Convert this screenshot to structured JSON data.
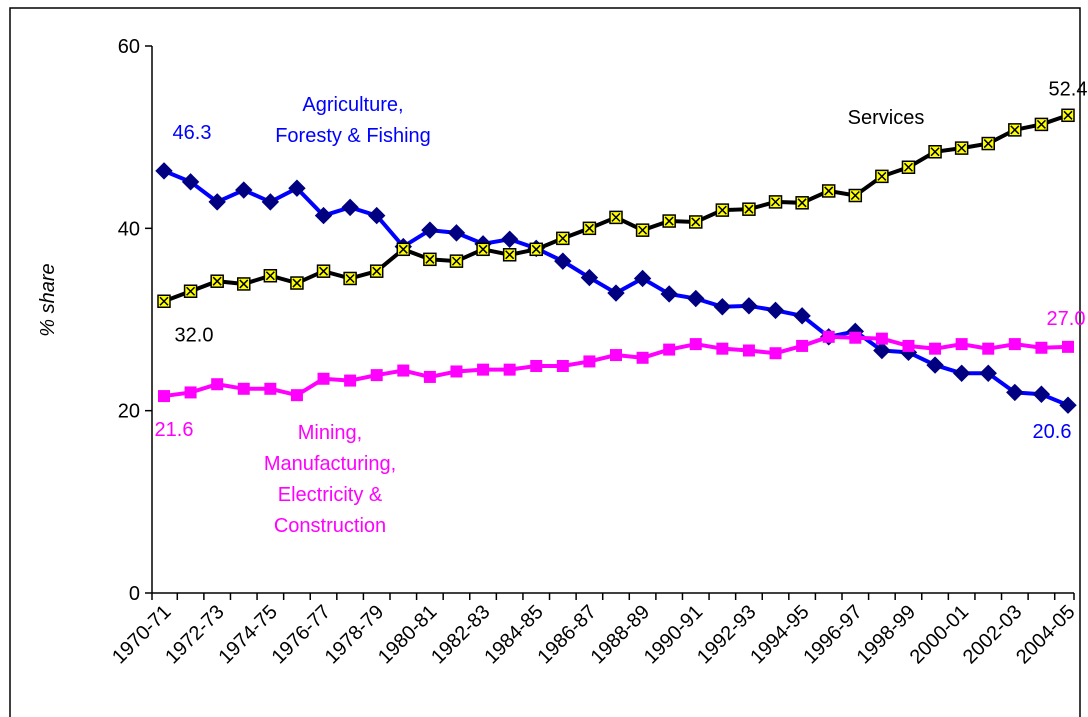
{
  "chart_data": {
    "type": "line",
    "y_label": "% share",
    "categories": [
      "1970-71",
      null,
      "1972-73",
      null,
      "1974-75",
      null,
      "1976-77",
      null,
      "1978-79",
      null,
      "1980-81",
      null,
      "1982-83",
      null,
      "1984-85",
      null,
      "1986-87",
      null,
      "1988-89",
      null,
      "1990-91",
      null,
      "1992-93",
      null,
      "1994-95",
      null,
      "1996-97",
      null,
      "1998-99",
      null,
      "2000-01",
      null,
      "2002-03",
      null,
      "2004-05"
    ],
    "ylim": [
      0,
      60
    ],
    "yticks": [
      0,
      20,
      40,
      60
    ],
    "series": [
      {
        "name": "Agriculture,\nForesty & Fishing",
        "color": "#0000ff",
        "marker": "diamond",
        "marker_color": "#000080",
        "values": [
          46.3,
          45.1,
          42.9,
          44.2,
          42.9,
          44.4,
          41.4,
          42.3,
          41.4,
          38.0,
          39.8,
          39.5,
          38.3,
          38.8,
          37.8,
          36.4,
          34.6,
          32.9,
          34.5,
          32.8,
          32.3,
          31.4,
          31.5,
          31.0,
          30.4,
          28.1,
          28.7,
          26.6,
          26.4,
          25.0,
          24.1,
          24.1,
          22.0,
          21.8,
          20.6
        ],
        "value_labels": [
          "46.3",
          null,
          null,
          null,
          null,
          null,
          null,
          null,
          null,
          null,
          null,
          null,
          null,
          null,
          null,
          null,
          null,
          null,
          null,
          null,
          null,
          null,
          null,
          null,
          null,
          null,
          null,
          null,
          null,
          null,
          null,
          null,
          null,
          null,
          "20.6"
        ]
      },
      {
        "name": "Services",
        "color": "#000000",
        "marker": "xsquare",
        "marker_color": "#ffff00",
        "values": [
          32.0,
          33.1,
          34.2,
          33.9,
          34.8,
          34.0,
          35.3,
          34.5,
          35.3,
          37.7,
          36.6,
          36.4,
          37.7,
          37.1,
          37.7,
          38.9,
          40.0,
          41.2,
          39.8,
          40.8,
          40.7,
          42.0,
          42.1,
          42.9,
          42.8,
          44.1,
          43.6,
          45.7,
          46.7,
          48.4,
          48.8,
          49.3,
          50.8,
          51.4,
          52.4
        ],
        "value_labels": [
          "32.0",
          null,
          null,
          null,
          null,
          null,
          null,
          null,
          null,
          null,
          null,
          null,
          null,
          null,
          null,
          null,
          null,
          null,
          null,
          null,
          null,
          null,
          null,
          null,
          null,
          null,
          null,
          null,
          null,
          null,
          null,
          null,
          null,
          null,
          "52.4"
        ]
      },
      {
        "name": "Mining,\nManufacturing,\nElectricity &\nConstruction",
        "color": "#ff00ff",
        "marker": "square",
        "marker_color": "#ff00ff",
        "values": [
          21.6,
          22.0,
          22.9,
          22.4,
          22.4,
          21.7,
          23.5,
          23.3,
          23.9,
          24.4,
          23.7,
          24.3,
          24.5,
          24.5,
          24.9,
          24.9,
          25.4,
          26.1,
          25.8,
          26.7,
          27.3,
          26.8,
          26.6,
          26.3,
          27.1,
          28.1,
          28.0,
          27.9,
          27.1,
          26.8,
          27.3,
          26.8,
          27.3,
          26.9,
          27.0
        ],
        "value_labels": [
          "21.6",
          null,
          null,
          null,
          null,
          null,
          null,
          null,
          null,
          null,
          null,
          null,
          null,
          null,
          null,
          null,
          null,
          null,
          null,
          null,
          null,
          null,
          null,
          null,
          null,
          null,
          null,
          null,
          null,
          null,
          null,
          null,
          null,
          null,
          "27.0"
        ]
      }
    ]
  }
}
